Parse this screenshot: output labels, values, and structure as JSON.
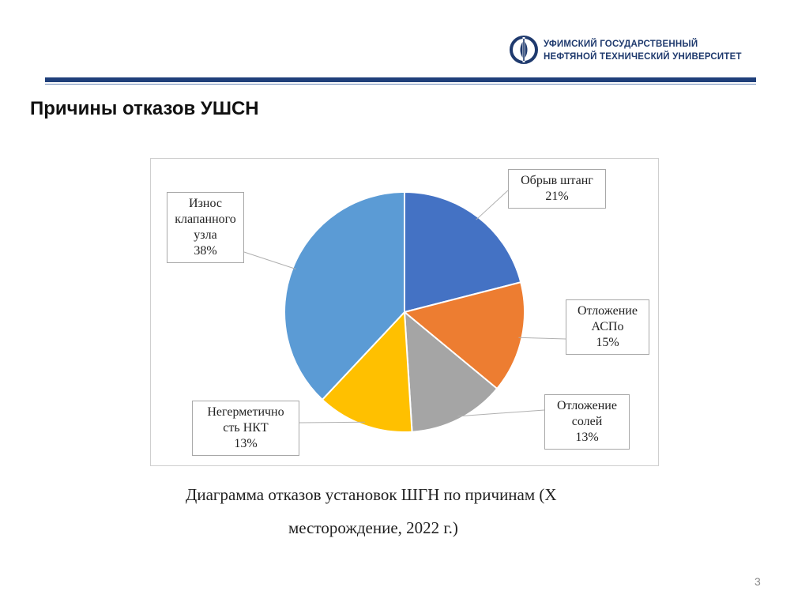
{
  "header": {
    "logo_line1": "УФИМСКИЙ ГОСУДАРСТВЕННЫЙ",
    "logo_line2": "НЕФТЯНОЙ ТЕХНИЧЕСКИЙ УНИВЕРСИТЕТ",
    "brand_color": "#1f3f7a",
    "logo_icon": "university-emblem-icon"
  },
  "slide": {
    "title": "Причины отказов УШСН",
    "caption_line1": "Диаграмма отказов установок ШГН по причинам (Х",
    "caption_line2": "месторождение, 2022 г.)",
    "page_number": "3"
  },
  "chart_data": {
    "type": "pie",
    "start_angle_deg": 0,
    "direction": "clockwise",
    "slices": [
      {
        "label_lines": [
          "Обрыв штанг",
          "21%"
        ],
        "value": 21,
        "color": "#4472c4"
      },
      {
        "label_lines": [
          "Отложение",
          "АСПо",
          "15%"
        ],
        "value": 15,
        "color": "#ed7d31"
      },
      {
        "label_lines": [
          "Отложение",
          "солей",
          "13%"
        ],
        "value": 13,
        "color": "#a5a5a5"
      },
      {
        "label_lines": [
          "Негерметично",
          "сть НКТ",
          "13%"
        ],
        "value": 13,
        "color": "#ffc000"
      },
      {
        "label_lines": [
          "Износ",
          "клапанного",
          "узла",
          "38%"
        ],
        "value": 38,
        "color": "#5b9bd5"
      }
    ]
  }
}
